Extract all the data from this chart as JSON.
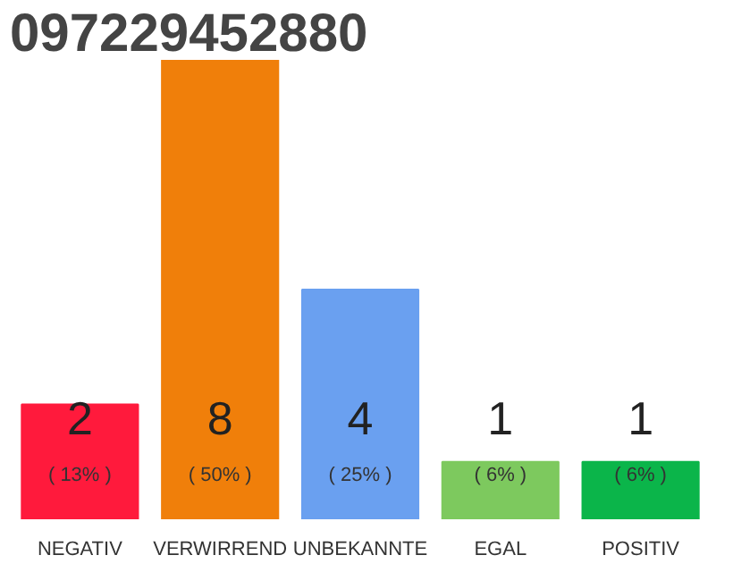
{
  "chart_data": {
    "type": "bar",
    "title": "097229452880",
    "categories": [
      "NEGATIV",
      "VERWIRREND",
      "UNBEKANNTE",
      "EGAL",
      "POSITIV"
    ],
    "values": [
      2,
      8,
      4,
      1,
      1
    ],
    "colors": [
      "#ff1a3c",
      "#f07f0a",
      "#6aa0f0",
      "#7dc95e",
      "#0bb54a"
    ],
    "value_labels": [
      "2",
      "8",
      "4",
      "1",
      "1"
    ],
    "annotations": [
      "( 13% )",
      "( 50% )",
      "( 25% )",
      "( 6% )",
      "( 6% )"
    ],
    "grid": false
  }
}
